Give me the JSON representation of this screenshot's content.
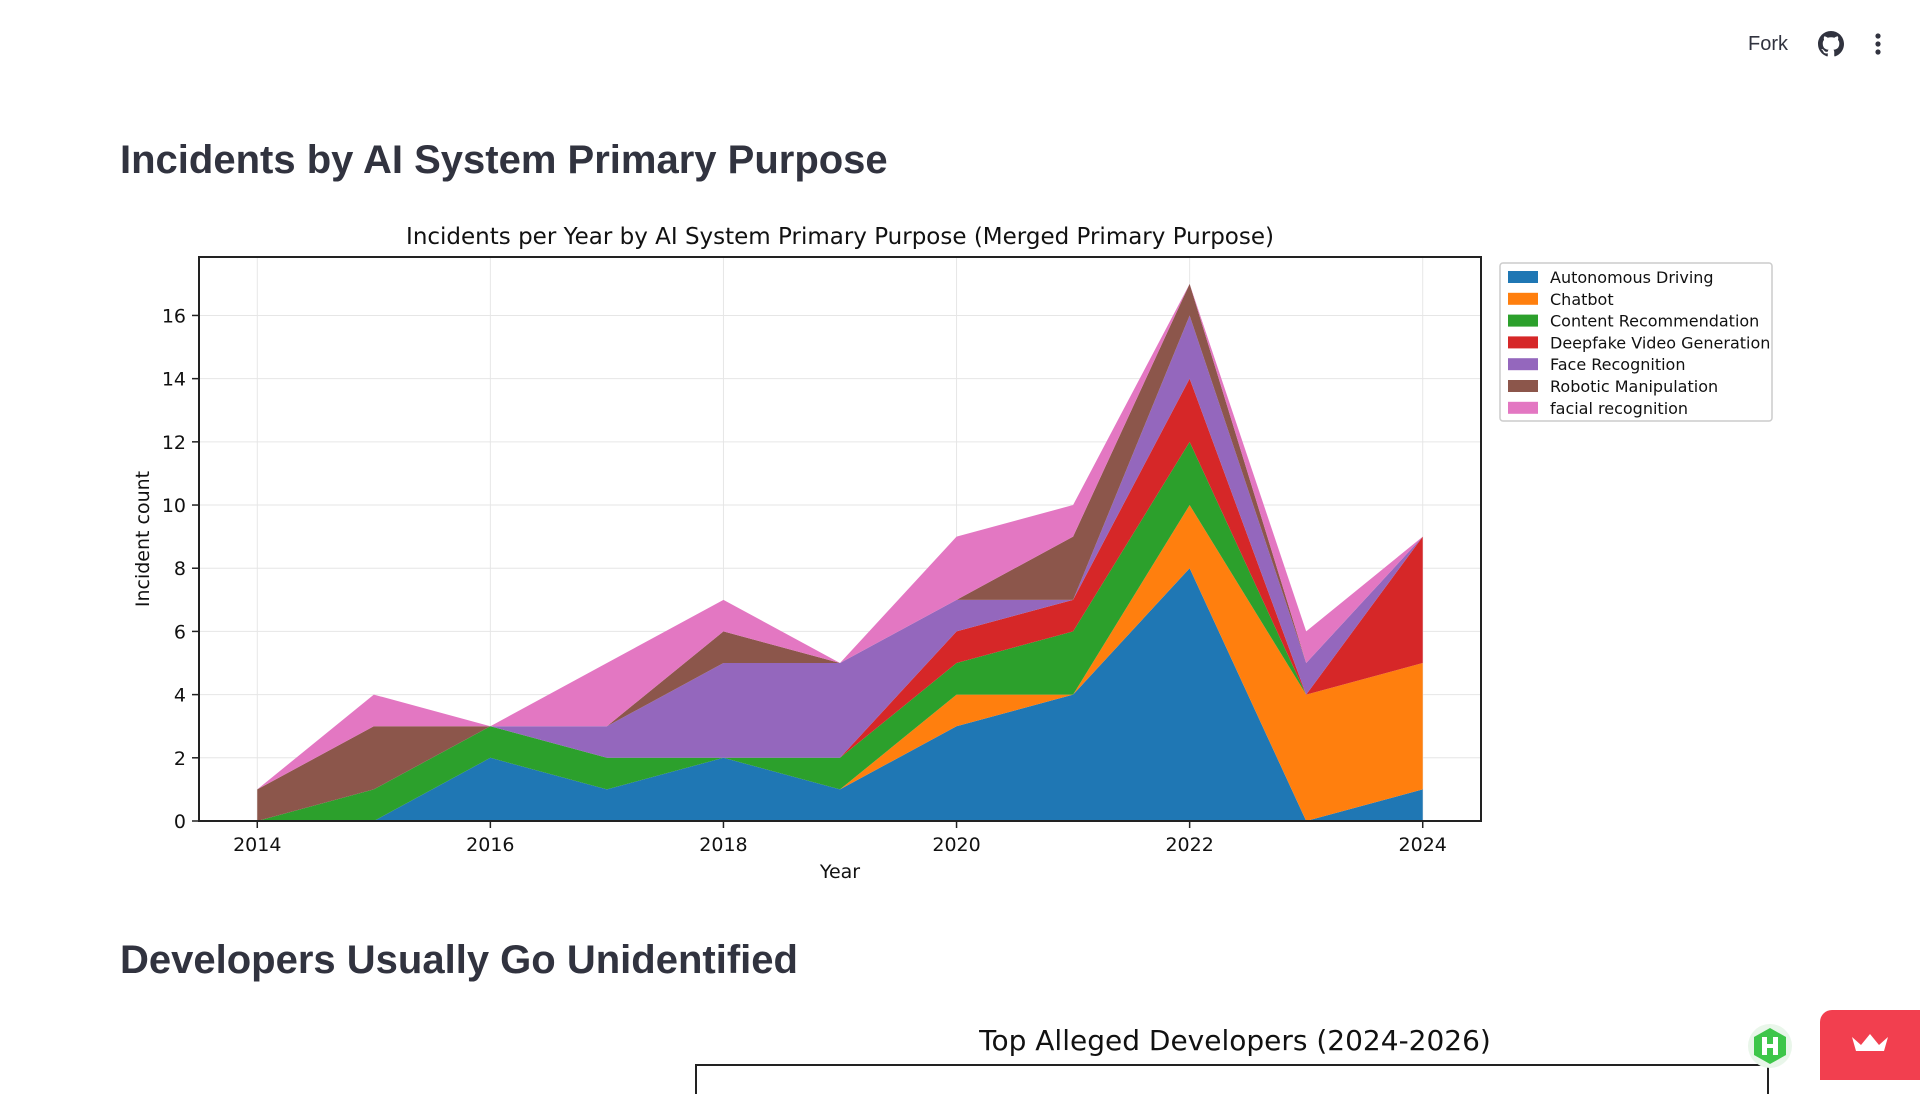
{
  "toolbar": {
    "fork_label": "Fork",
    "github_icon": "github-icon",
    "menu_icon": "kebab-menu-icon"
  },
  "sections": {
    "title1": "Incidents by AI System Primary Purpose",
    "title2": "Developers Usually Go Unidentified"
  },
  "chart_data": [
    {
      "type": "area",
      "stacked": true,
      "title": "Incidents per Year by AI System Primary Purpose (Merged Primary Purpose)",
      "xlabel": "Year",
      "ylabel": "Incident count",
      "x": [
        2014,
        2015,
        2016,
        2017,
        2018,
        2019,
        2020,
        2021,
        2022,
        2023,
        2024
      ],
      "xticks": [
        2014,
        2016,
        2018,
        2020,
        2022,
        2024
      ],
      "yticks": [
        0,
        2,
        4,
        6,
        8,
        10,
        12,
        14,
        16
      ],
      "xlim": [
        2013.5,
        2024.5
      ],
      "ylim": [
        0,
        17.85
      ],
      "grid": true,
      "legend_position": "upper-right-outside",
      "series": [
        {
          "name": "Autonomous Driving",
          "color": "#1f77b4",
          "values": [
            0,
            0,
            2,
            1,
            2,
            1,
            3,
            4,
            8,
            0,
            1
          ]
        },
        {
          "name": "Chatbot",
          "color": "#ff7f0e",
          "values": [
            0,
            0,
            0,
            0,
            0,
            0,
            1,
            0,
            2,
            4,
            4
          ]
        },
        {
          "name": "Content Recommendation",
          "color": "#2ca02c",
          "values": [
            0,
            1,
            1,
            1,
            0,
            1,
            1,
            2,
            2,
            0,
            0
          ]
        },
        {
          "name": "Deepfake Video Generation",
          "color": "#d62728",
          "values": [
            0,
            0,
            0,
            0,
            0,
            0,
            1,
            1,
            2,
            0,
            4
          ]
        },
        {
          "name": "Face Recognition",
          "color": "#9467bd",
          "values": [
            0,
            0,
            0,
            1,
            3,
            3,
            1,
            0,
            2,
            1,
            0
          ]
        },
        {
          "name": "Robotic Manipulation",
          "color": "#8c564b",
          "values": [
            1,
            2,
            0,
            0,
            1,
            0,
            0,
            2,
            1,
            0,
            0
          ]
        },
        {
          "name": "facial recognition",
          "color": "#e377c2",
          "values": [
            0,
            1,
            0,
            2,
            1,
            0,
            2,
            1,
            0,
            1,
            0
          ]
        }
      ]
    },
    {
      "type": "bar",
      "title": "Top Alleged Developers (2024-2026)"
    }
  ],
  "badges": {
    "hex_icon": "hex-h-icon",
    "deploy_icon": "crown-icon"
  }
}
